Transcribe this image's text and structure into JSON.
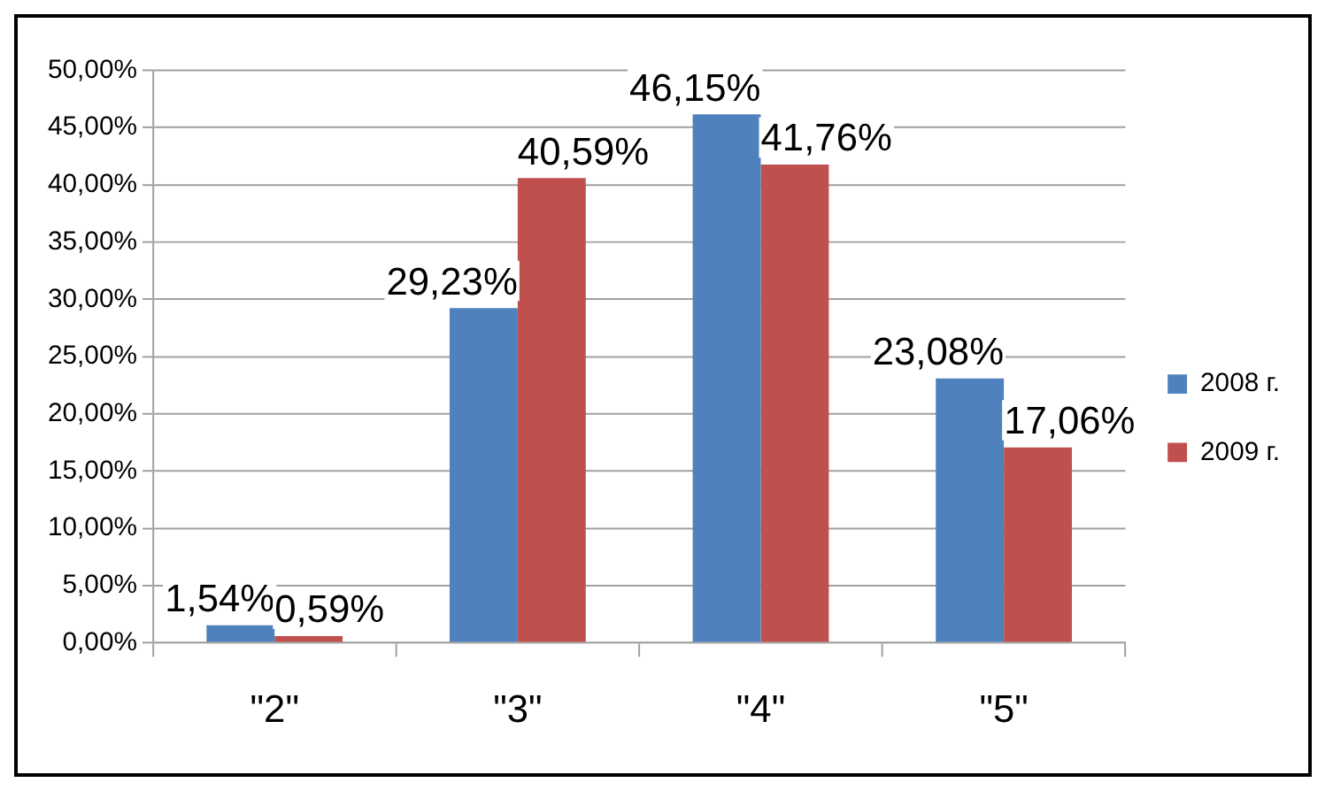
{
  "chart_data": {
    "type": "bar",
    "categories": [
      "\"2\"",
      "\"3\"",
      "\"4\"",
      "\"5\""
    ],
    "series": [
      {
        "name": "2008 г.",
        "color": "#4f81bd",
        "values": [
          1.54,
          29.23,
          46.15,
          23.08
        ],
        "value_labels": [
          "1,54%",
          "29,23%",
          "46,15%",
          "23,08%"
        ]
      },
      {
        "name": "2009 г.",
        "color": "#c0504d",
        "values": [
          0.59,
          40.59,
          41.76,
          17.06
        ],
        "value_labels": [
          "0,59%",
          "40,59%",
          "41,76%",
          "17,06%"
        ]
      }
    ],
    "ylim": [
      0,
      50
    ],
    "yticks": [
      {
        "value": 0,
        "label": "0,00%"
      },
      {
        "value": 5,
        "label": "5,00%"
      },
      {
        "value": 10,
        "label": "10,00%"
      },
      {
        "value": 15,
        "label": "15,00%"
      },
      {
        "value": 20,
        "label": "20,00%"
      },
      {
        "value": 25,
        "label": "25,00%"
      },
      {
        "value": 30,
        "label": "30,00%"
      },
      {
        "value": 35,
        "label": "35,00%"
      },
      {
        "value": 40,
        "label": "40,00%"
      },
      {
        "value": 45,
        "label": "45,00%"
      },
      {
        "value": 50,
        "label": "50,00%"
      }
    ],
    "grid": "y",
    "legend": "right"
  }
}
